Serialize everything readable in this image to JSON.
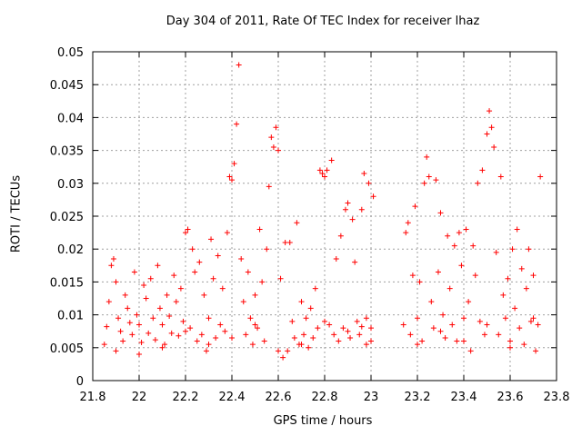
{
  "chart_data": {
    "type": "scatter",
    "title": "Day 304 of 2011, Rate Of TEC Index for receiver lhaz",
    "xlabel": "GPS time / hours",
    "ylabel": "ROTI / TECUs",
    "xlim": [
      21.8,
      23.8
    ],
    "ylim": [
      0,
      0.05
    ],
    "xticks": [
      "21.8",
      "22",
      "22.2",
      "22.4",
      "22.6",
      "22.8",
      "23",
      "23.2",
      "23.4",
      "23.6",
      "23.8"
    ],
    "yticks": [
      "0",
      "0.005",
      "0.01",
      "0.015",
      "0.02",
      "0.025",
      "0.03",
      "0.035",
      "0.04",
      "0.045",
      "0.05"
    ],
    "grid": true,
    "marker": "plus",
    "color": "#ff0000",
    "series": [
      {
        "points": [
          [
            21.85,
            0.0055
          ],
          [
            21.86,
            0.0082
          ],
          [
            21.87,
            0.012
          ],
          [
            21.88,
            0.0175
          ],
          [
            21.89,
            0.0185
          ],
          [
            21.9,
            0.015
          ],
          [
            21.91,
            0.0095
          ],
          [
            21.92,
            0.0075
          ],
          [
            21.93,
            0.006
          ],
          [
            21.94,
            0.013
          ],
          [
            21.95,
            0.011
          ],
          [
            21.96,
            0.0088
          ],
          [
            21.97,
            0.007
          ],
          [
            21.98,
            0.0165
          ],
          [
            21.99,
            0.01
          ],
          [
            22.0,
            0.0085
          ],
          [
            22.01,
            0.0058
          ],
          [
            22.02,
            0.0145
          ],
          [
            22.03,
            0.0125
          ],
          [
            22.04,
            0.0072
          ],
          [
            22.05,
            0.0155
          ],
          [
            22.06,
            0.0095
          ],
          [
            22.07,
            0.0062
          ],
          [
            22.08,
            0.0175
          ],
          [
            22.09,
            0.011
          ],
          [
            22.1,
            0.0085
          ],
          [
            22.11,
            0.0055
          ],
          [
            22.12,
            0.013
          ],
          [
            22.13,
            0.0098
          ],
          [
            22.14,
            0.0072
          ],
          [
            22.15,
            0.016
          ],
          [
            22.16,
            0.012
          ],
          [
            22.17,
            0.0068
          ],
          [
            22.18,
            0.014
          ],
          [
            22.19,
            0.009
          ],
          [
            22.2,
            0.0225
          ],
          [
            22.21,
            0.023
          ],
          [
            22.22,
            0.008
          ],
          [
            22.23,
            0.02
          ],
          [
            22.24,
            0.0165
          ],
          [
            22.25,
            0.006
          ],
          [
            22.26,
            0.018
          ],
          [
            22.27,
            0.007
          ],
          [
            22.28,
            0.013
          ],
          [
            22.29,
            0.0045
          ],
          [
            22.3,
            0.0095
          ],
          [
            22.31,
            0.0215
          ],
          [
            22.32,
            0.0155
          ],
          [
            22.33,
            0.0065
          ],
          [
            22.34,
            0.019
          ],
          [
            22.35,
            0.0085
          ],
          [
            22.36,
            0.014
          ],
          [
            22.37,
            0.0075
          ],
          [
            22.38,
            0.0225
          ],
          [
            22.39,
            0.031
          ],
          [
            22.4,
            0.0305
          ],
          [
            22.41,
            0.033
          ],
          [
            22.42,
            0.039
          ],
          [
            22.43,
            0.048
          ],
          [
            22.44,
            0.0185
          ],
          [
            22.45,
            0.012
          ],
          [
            22.46,
            0.007
          ],
          [
            22.47,
            0.0165
          ],
          [
            22.48,
            0.0095
          ],
          [
            22.49,
            0.0055
          ],
          [
            22.5,
            0.013
          ],
          [
            22.51,
            0.008
          ],
          [
            22.52,
            0.023
          ],
          [
            22.53,
            0.015
          ],
          [
            22.54,
            0.006
          ],
          [
            22.55,
            0.02
          ],
          [
            22.56,
            0.0295
          ],
          [
            22.57,
            0.037
          ],
          [
            22.58,
            0.0355
          ],
          [
            22.59,
            0.0385
          ],
          [
            22.6,
            0.035
          ],
          [
            22.61,
            0.0155
          ],
          [
            22.62,
            0.0035
          ],
          [
            22.63,
            0.021
          ],
          [
            22.64,
            0.0045
          ],
          [
            22.65,
            0.021
          ],
          [
            22.66,
            0.009
          ],
          [
            22.67,
            0.0065
          ],
          [
            22.68,
            0.024
          ],
          [
            22.69,
            0.0055
          ],
          [
            22.7,
            0.012
          ],
          [
            22.71,
            0.007
          ],
          [
            22.72,
            0.0095
          ],
          [
            22.73,
            0.005
          ],
          [
            22.74,
            0.011
          ],
          [
            22.75,
            0.0065
          ],
          [
            22.76,
            0.014
          ],
          [
            22.77,
            0.008
          ],
          [
            22.78,
            0.032
          ],
          [
            22.79,
            0.0315
          ],
          [
            22.8,
            0.031
          ],
          [
            22.81,
            0.032
          ],
          [
            22.82,
            0.0085
          ],
          [
            22.83,
            0.0335
          ],
          [
            22.84,
            0.007
          ],
          [
            22.85,
            0.0185
          ],
          [
            22.86,
            0.006
          ],
          [
            22.87,
            0.022
          ],
          [
            22.88,
            0.008
          ],
          [
            22.89,
            0.026
          ],
          [
            22.9,
            0.027
          ],
          [
            22.91,
            0.0065
          ],
          [
            22.92,
            0.0245
          ],
          [
            22.93,
            0.018
          ],
          [
            22.94,
            0.009
          ],
          [
            22.95,
            0.007
          ],
          [
            22.96,
            0.026
          ],
          [
            22.97,
            0.0315
          ],
          [
            22.98,
            0.0095
          ],
          [
            22.99,
            0.03
          ],
          [
            23.0,
            0.008
          ],
          [
            23.01,
            0.028
          ],
          [
            23.0,
            0.006
          ],
          [
            22.98,
            0.0055
          ],
          [
            22.96,
            0.0082
          ],
          [
            23.14,
            0.0085
          ],
          [
            23.15,
            0.0225
          ],
          [
            23.16,
            0.024
          ],
          [
            23.17,
            0.007
          ],
          [
            23.18,
            0.016
          ],
          [
            23.19,
            0.0265
          ],
          [
            23.2,
            0.0095
          ],
          [
            23.21,
            0.015
          ],
          [
            23.22,
            0.006
          ],
          [
            23.23,
            0.03
          ],
          [
            23.24,
            0.034
          ],
          [
            23.25,
            0.031
          ],
          [
            23.26,
            0.012
          ],
          [
            23.27,
            0.008
          ],
          [
            23.28,
            0.0305
          ],
          [
            23.29,
            0.0165
          ],
          [
            23.3,
            0.0255
          ],
          [
            23.31,
            0.01
          ],
          [
            23.32,
            0.0065
          ],
          [
            23.33,
            0.022
          ],
          [
            23.34,
            0.014
          ],
          [
            23.35,
            0.0085
          ],
          [
            23.36,
            0.0205
          ],
          [
            23.37,
            0.006
          ],
          [
            23.38,
            0.0225
          ],
          [
            23.39,
            0.0175
          ],
          [
            23.4,
            0.0095
          ],
          [
            23.41,
            0.023
          ],
          [
            23.42,
            0.012
          ],
          [
            23.43,
            0.0045
          ],
          [
            23.44,
            0.0205
          ],
          [
            23.45,
            0.016
          ],
          [
            23.46,
            0.03
          ],
          [
            23.47,
            0.009
          ],
          [
            23.48,
            0.032
          ],
          [
            23.49,
            0.007
          ],
          [
            23.5,
            0.0375
          ],
          [
            23.51,
            0.041
          ],
          [
            23.52,
            0.0385
          ],
          [
            23.53,
            0.0355
          ],
          [
            23.54,
            0.0195
          ],
          [
            23.55,
            0.007
          ],
          [
            23.56,
            0.031
          ],
          [
            23.57,
            0.013
          ],
          [
            23.58,
            0.0095
          ],
          [
            23.59,
            0.0155
          ],
          [
            23.6,
            0.006
          ],
          [
            23.61,
            0.02
          ],
          [
            23.62,
            0.011
          ],
          [
            23.63,
            0.023
          ],
          [
            23.64,
            0.008
          ],
          [
            23.65,
            0.017
          ],
          [
            23.66,
            0.0055
          ],
          [
            23.67,
            0.014
          ],
          [
            23.68,
            0.02
          ],
          [
            23.69,
            0.009
          ],
          [
            23.7,
            0.016
          ],
          [
            23.71,
            0.0045
          ],
          [
            23.72,
            0.0085
          ],
          [
            23.73,
            0.031
          ],
          [
            21.9,
            0.0045
          ],
          [
            22.0,
            0.004
          ],
          [
            22.1,
            0.005
          ],
          [
            22.2,
            0.0075
          ],
          [
            22.3,
            0.0055
          ],
          [
            22.4,
            0.0065
          ],
          [
            22.5,
            0.0085
          ],
          [
            22.6,
            0.0045
          ],
          [
            22.7,
            0.0055
          ],
          [
            22.8,
            0.009
          ],
          [
            22.9,
            0.0075
          ],
          [
            23.2,
            0.0055
          ],
          [
            23.3,
            0.0075
          ],
          [
            23.4,
            0.006
          ],
          [
            23.5,
            0.0085
          ],
          [
            23.6,
            0.005
          ],
          [
            23.7,
            0.0095
          ]
        ]
      }
    ]
  }
}
